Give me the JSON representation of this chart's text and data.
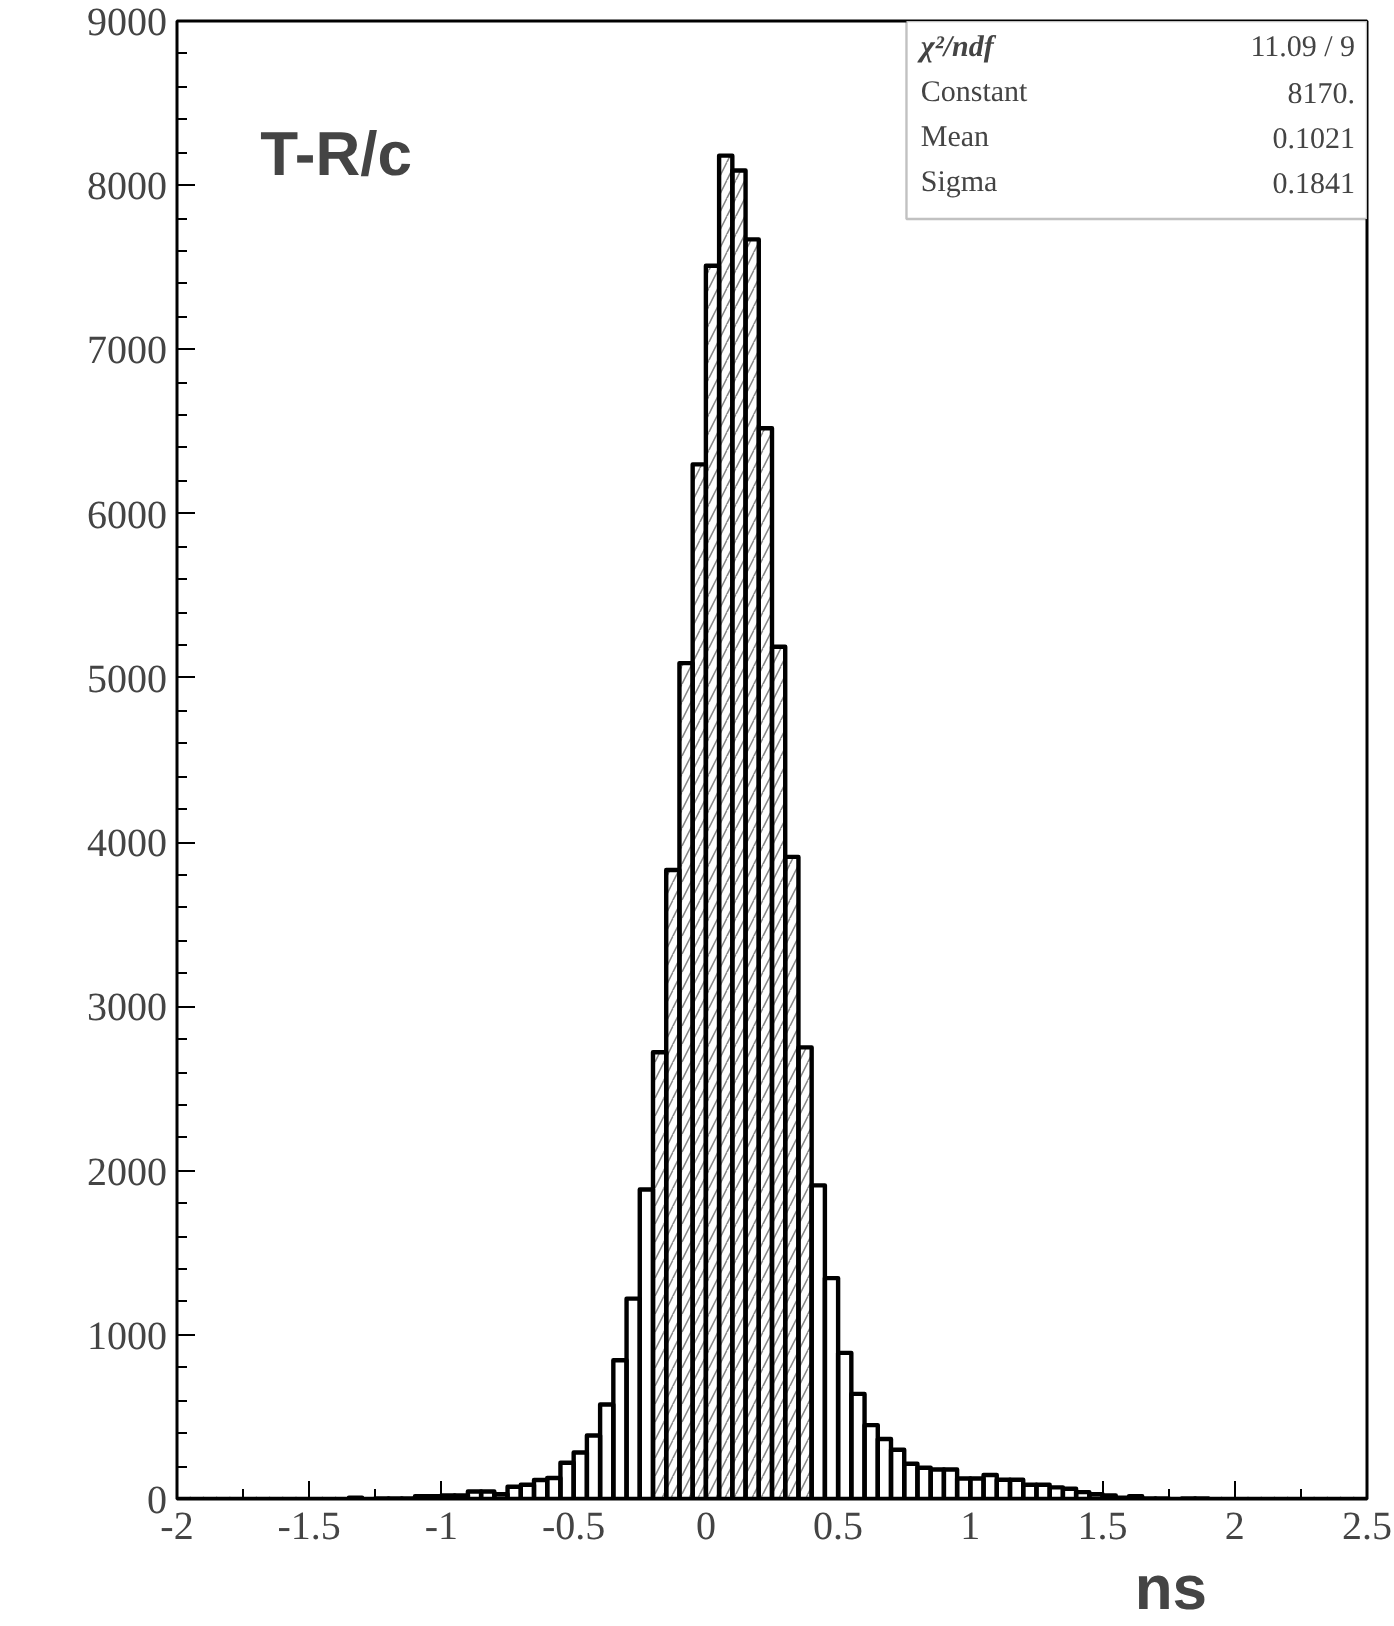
{
  "chart_data": {
    "type": "histogram",
    "title": "T-R/c",
    "xlabel": "ns",
    "bins": [
      -2,
      -1.95,
      -1.9,
      -1.85,
      -1.8,
      -1.75,
      -1.7,
      -1.65,
      -1.6,
      -1.55,
      -1.5,
      -1.45,
      -1.4,
      -1.35,
      -1.3,
      -1.25,
      -1.2,
      -1.15,
      -1.1,
      -1.05,
      -1,
      -0.95,
      -0.9,
      -0.85,
      -0.8,
      -0.75,
      -0.7,
      -0.65,
      -0.6,
      -0.55,
      -0.5,
      -0.45,
      -0.4,
      -0.35,
      -0.3,
      -0.25,
      -0.2,
      -0.15,
      -0.1,
      -0.05,
      0,
      0.05,
      0.1,
      0.15,
      0.2,
      0.25,
      0.3,
      0.35,
      0.4,
      0.45,
      0.5,
      0.55,
      0.6,
      0.65,
      0.7,
      0.75,
      0.8,
      0.85,
      0.9,
      0.95,
      1,
      1.05,
      1.1,
      1.15,
      1.2,
      1.25,
      1.3,
      1.35,
      1.4,
      1.45,
      1.5,
      1.55,
      1.6,
      1.65,
      1.7,
      1.75,
      1.8,
      1.85,
      1.9,
      1.95,
      2,
      2.05,
      2.1,
      2.15,
      2.2,
      2.25,
      2.3,
      2.35,
      2.4,
      2.45,
      2.5
    ],
    "series": [
      {
        "color": "#000000",
        "values": [
          0,
          0,
          0,
          0,
          0,
          0,
          0,
          0,
          0,
          0,
          0,
          0,
          0,
          8,
          0,
          4,
          4,
          4,
          17,
          17,
          21,
          21,
          46,
          46,
          29,
          75,
          87,
          116,
          128,
          221,
          283,
          387,
          575,
          845,
          1220,
          1885,
          2720,
          3830,
          5090,
          6300,
          7510,
          8180,
          8090,
          7670,
          6520,
          5190,
          3910,
          2750,
          1910,
          1345,
          890,
          640,
          450,
          365,
          300,
          215,
          190,
          180,
          180,
          125,
          125,
          146,
          117,
          117,
          87,
          87,
          71,
          62,
          42,
          29,
          21,
          8,
          17,
          4,
          4,
          0,
          4,
          4,
          0,
          0,
          0,
          0,
          0,
          0,
          0,
          0,
          0,
          0,
          0,
          0
        ]
      },
      {
        "type": "area",
        "color": "#888888",
        "x": [
          -0.2,
          -0.2,
          -0.15,
          -0.15,
          -0.1,
          -0.1,
          -0.05,
          -0.05,
          0,
          0,
          0.05,
          0.05,
          0.1,
          0.1,
          0.15,
          0.15,
          0.2,
          0.2,
          0.25,
          0.25,
          0.3,
          0.3,
          0.35,
          0.35,
          0.4,
          0.4
        ],
        "values": [
          0,
          2720,
          2720,
          3830,
          3830,
          5090,
          5090,
          6300,
          6300,
          7510,
          7510,
          8180,
          8180,
          8090,
          8090,
          7670,
          7670,
          6520,
          6520,
          5190,
          5190,
          3910,
          3910,
          2750,
          2750,
          0
        ]
      }
    ],
    "xlim": [
      -2,
      2.5
    ],
    "ylim": [
      0,
      9000
    ],
    "xticks": [
      -2,
      -1.5,
      -1,
      -0.5,
      0,
      0.5,
      1,
      1.5,
      2,
      2.5
    ],
    "yticks": [
      0,
      1000,
      2000,
      3000,
      4000,
      5000,
      6000,
      7000,
      8000,
      9000
    ],
    "annotations": [
      "χ²/ndf 11.09 / 9",
      "Constant 8170.",
      "Mean 0.1021",
      "Sigma 0.1841"
    ],
    "grid": false
  }
}
